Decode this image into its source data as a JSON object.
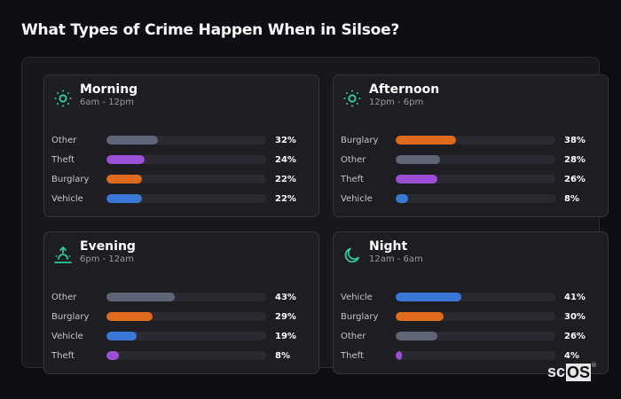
{
  "title": "What Types of Crime Happen When in Silsoe?",
  "colors": {
    "Other": "#5f6577",
    "Theft": "#9b4fd6",
    "Burglary": "#e06a1e",
    "Vehicle": "#3a78d8",
    "accent": "#2dc99a"
  },
  "cards": [
    {
      "name": "Morning",
      "range": "6am - 12pm",
      "icon": "sun-icon",
      "rows": [
        {
          "label": "Other",
          "pct": "32%",
          "value": 32
        },
        {
          "label": "Theft",
          "pct": "24%",
          "value": 24
        },
        {
          "label": "Burglary",
          "pct": "22%",
          "value": 22
        },
        {
          "label": "Vehicle",
          "pct": "22%",
          "value": 22
        }
      ]
    },
    {
      "name": "Afternoon",
      "range": "12pm - 6pm",
      "icon": "sun-icon",
      "rows": [
        {
          "label": "Burglary",
          "pct": "38%",
          "value": 38
        },
        {
          "label": "Other",
          "pct": "28%",
          "value": 28
        },
        {
          "label": "Theft",
          "pct": "26%",
          "value": 26
        },
        {
          "label": "Vehicle",
          "pct": "8%",
          "value": 8
        }
      ]
    },
    {
      "name": "Evening",
      "range": "6pm - 12am",
      "icon": "sunset-icon",
      "rows": [
        {
          "label": "Other",
          "pct": "43%",
          "value": 43
        },
        {
          "label": "Burglary",
          "pct": "29%",
          "value": 29
        },
        {
          "label": "Vehicle",
          "pct": "19%",
          "value": 19
        },
        {
          "label": "Theft",
          "pct": "8%",
          "value": 8
        }
      ]
    },
    {
      "name": "Night",
      "range": "12am - 6am",
      "icon": "moon-icon",
      "rows": [
        {
          "label": "Vehicle",
          "pct": "41%",
          "value": 41
        },
        {
          "label": "Burglary",
          "pct": "30%",
          "value": 30
        },
        {
          "label": "Other",
          "pct": "26%",
          "value": 26
        },
        {
          "label": "Theft",
          "pct": "4%",
          "value": 4
        }
      ]
    }
  ],
  "logo": {
    "sc": "sc",
    "os": "OS",
    "reg": "®"
  },
  "chart_data": [
    {
      "type": "bar",
      "orientation": "horizontal",
      "title": "Morning",
      "subtitle": "6am - 12pm",
      "categories": [
        "Other",
        "Theft",
        "Burglary",
        "Vehicle"
      ],
      "values": [
        32,
        24,
        22,
        22
      ],
      "unit": "%",
      "xlim": [
        0,
        100
      ]
    },
    {
      "type": "bar",
      "orientation": "horizontal",
      "title": "Afternoon",
      "subtitle": "12pm - 6pm",
      "categories": [
        "Burglary",
        "Other",
        "Theft",
        "Vehicle"
      ],
      "values": [
        38,
        28,
        26,
        8
      ],
      "unit": "%",
      "xlim": [
        0,
        100
      ]
    },
    {
      "type": "bar",
      "orientation": "horizontal",
      "title": "Evening",
      "subtitle": "6pm - 12am",
      "categories": [
        "Other",
        "Burglary",
        "Vehicle",
        "Theft"
      ],
      "values": [
        43,
        29,
        19,
        8
      ],
      "unit": "%",
      "xlim": [
        0,
        100
      ]
    },
    {
      "type": "bar",
      "orientation": "horizontal",
      "title": "Night",
      "subtitle": "12am - 6am",
      "categories": [
        "Vehicle",
        "Burglary",
        "Other",
        "Theft"
      ],
      "values": [
        41,
        30,
        26,
        4
      ],
      "unit": "%",
      "xlim": [
        0,
        100
      ]
    }
  ]
}
